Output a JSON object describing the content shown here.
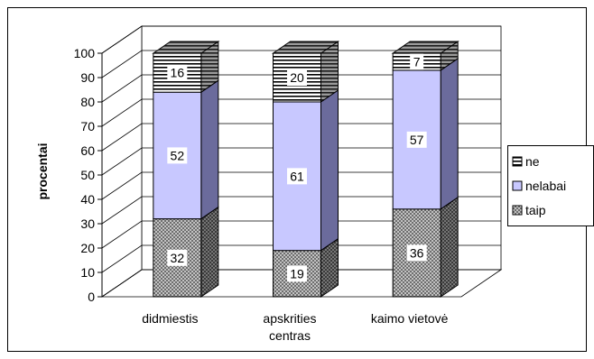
{
  "chart_data": {
    "type": "bar",
    "stacked": true,
    "three_d": true,
    "ylabel": "procentai",
    "xlabel": "",
    "ylim": [
      0,
      100
    ],
    "yticks": [
      0,
      10,
      20,
      30,
      40,
      50,
      60,
      70,
      80,
      90,
      100
    ],
    "grid": true,
    "legend_position": "right",
    "categories": [
      [
        "didmiestis"
      ],
      [
        "apskrities",
        "centras"
      ],
      [
        "kaimo vietovė"
      ]
    ],
    "series": [
      {
        "name": "taip",
        "values": [
          32,
          19,
          36
        ],
        "pattern": "dotted-dark",
        "color": "#8a8a8a"
      },
      {
        "name": "nelabai",
        "values": [
          52,
          61,
          57
        ],
        "pattern": "solid",
        "color": "#c8c8ff"
      },
      {
        "name": "ne",
        "values": [
          16,
          20,
          7
        ],
        "pattern": "horizontal-lines",
        "color": "#ffffff"
      }
    ],
    "legend_order": [
      "ne",
      "nelabai",
      "taip"
    ],
    "side_colors": {
      "nelabai": "#6b6b9c"
    }
  }
}
